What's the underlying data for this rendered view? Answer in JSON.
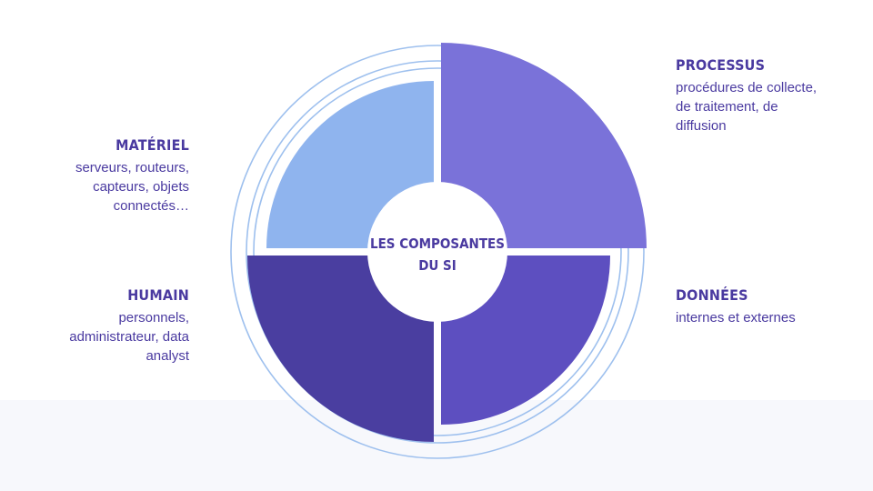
{
  "center": {
    "line1": "LES COMPOSANTES",
    "line2": "DU SI"
  },
  "segments": [
    {
      "id": "materiel",
      "title": "MATÉRIEL",
      "desc": [
        "serveurs, routeurs,",
        "capteurs, objets",
        "connectés…"
      ],
      "color": "#8fb4ee"
    },
    {
      "id": "processus",
      "title": "PROCESSUS",
      "desc": [
        "procédures de collecte,",
        "de traitement, de",
        "diffusion"
      ],
      "color": "#7a72d9"
    },
    {
      "id": "donnees",
      "title": "DONNÉES",
      "desc": [
        "internes et externes"
      ],
      "color": "#5d4fc0"
    },
    {
      "id": "humain",
      "title": "HUMAIN",
      "desc": [
        "personnels,",
        "administrateur, data",
        "analyst"
      ],
      "color": "#4a3ea0"
    }
  ],
  "colors": {
    "text": "#4a3aa0",
    "ring": "#9ec0ee",
    "background": "#ffffff",
    "band": "#f7f8fc"
  }
}
